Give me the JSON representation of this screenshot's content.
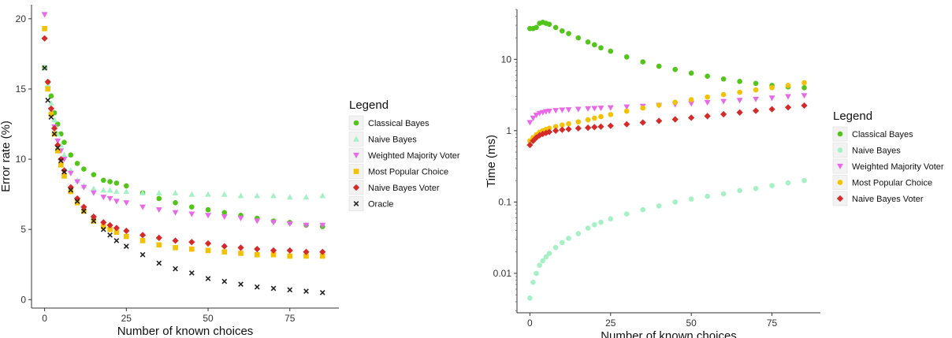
{
  "legend_title": "Legend",
  "colors": {
    "Classical Bayes": "#52c41a",
    "Naive Bayes": "#a6f0c6",
    "Weighted Majority Voter": "#e868e8",
    "Most Popular Choice": "#f2c200",
    "Naive Bayes Voter": "#d42a2a",
    "Oracle": "#222222"
  },
  "chart_data": [
    {
      "type": "scatter",
      "xlabel": "Number of known choices",
      "ylabel": "Error rate (%)",
      "xlim": [
        -4,
        90
      ],
      "ylim": [
        -0.6,
        21
      ],
      "xticks": [
        0,
        25,
        50,
        75
      ],
      "yticks": [
        0,
        5,
        10,
        15,
        20
      ],
      "y_scale": "linear",
      "grid": false,
      "legend": "right",
      "legend_title": "Legend",
      "series": [
        {
          "name": "Classical Bayes",
          "marker": "circle",
          "x": [
            0,
            1,
            2,
            3,
            4,
            5,
            6,
            8,
            10,
            12,
            15,
            18,
            20,
            22,
            25,
            30,
            35,
            40,
            45,
            50,
            55,
            60,
            65,
            70,
            75,
            80,
            85
          ],
          "y": [
            16.5,
            15.5,
            14.5,
            13.3,
            12.5,
            11.8,
            11.2,
            10.3,
            9.7,
            9.3,
            8.9,
            8.5,
            8.4,
            8.3,
            8.1,
            7.6,
            7.2,
            6.9,
            6.6,
            6.4,
            6.2,
            6.0,
            5.8,
            5.6,
            5.5,
            5.3,
            5.2
          ]
        },
        {
          "name": "Naive Bayes",
          "marker": "triangle-up",
          "x": [
            0,
            1,
            2,
            3,
            4,
            5,
            6,
            8,
            10,
            12,
            15,
            18,
            20,
            22,
            25,
            30,
            35,
            40,
            45,
            50,
            55,
            60,
            65,
            70,
            75,
            80,
            85
          ],
          "y": [
            16.5,
            15.3,
            14.0,
            12.8,
            11.8,
            11.0,
            10.3,
            9.2,
            8.5,
            8.1,
            7.9,
            7.8,
            7.8,
            7.7,
            7.7,
            7.6,
            7.6,
            7.6,
            7.5,
            7.5,
            7.5,
            7.4,
            7.4,
            7.4,
            7.3,
            7.3,
            7.4
          ]
        },
        {
          "name": "Weighted Majority Voter",
          "marker": "triangle-down",
          "x": [
            0,
            1,
            2,
            3,
            4,
            5,
            6,
            8,
            10,
            12,
            15,
            18,
            20,
            22,
            25,
            30,
            35,
            40,
            45,
            50,
            55,
            60,
            65,
            70,
            75,
            80,
            85
          ],
          "y": [
            20.3,
            15.0,
            13.5,
            12.3,
            11.3,
            10.6,
            10.0,
            9.0,
            8.4,
            8.0,
            7.6,
            7.3,
            7.2,
            7.0,
            6.9,
            6.6,
            6.4,
            6.2,
            6.1,
            6.0,
            5.9,
            5.8,
            5.6,
            5.5,
            5.4,
            5.3,
            5.3
          ]
        },
        {
          "name": "Most Popular Choice",
          "marker": "square",
          "x": [
            0,
            1,
            2,
            3,
            4,
            5,
            6,
            8,
            10,
            12,
            15,
            18,
            20,
            22,
            25,
            30,
            35,
            40,
            45,
            50,
            55,
            60,
            65,
            70,
            75,
            80,
            85
          ],
          "y": [
            19.3,
            15.0,
            13.2,
            11.8,
            10.6,
            9.6,
            8.8,
            7.7,
            6.9,
            6.3,
            5.6,
            5.2,
            5.0,
            4.8,
            4.5,
            4.2,
            3.9,
            3.7,
            3.6,
            3.5,
            3.4,
            3.3,
            3.2,
            3.2,
            3.1,
            3.1,
            3.1
          ]
        },
        {
          "name": "Naive Bayes Voter",
          "marker": "diamond",
          "x": [
            0,
            1,
            2,
            3,
            4,
            5,
            6,
            8,
            10,
            12,
            15,
            18,
            20,
            22,
            25,
            30,
            35,
            40,
            45,
            50,
            55,
            60,
            65,
            70,
            75,
            80,
            85
          ],
          "y": [
            18.6,
            15.5,
            13.6,
            12.2,
            11.0,
            10.0,
            9.2,
            8.0,
            7.2,
            6.6,
            5.9,
            5.5,
            5.3,
            5.1,
            4.9,
            4.6,
            4.4,
            4.2,
            4.1,
            4.0,
            3.8,
            3.7,
            3.6,
            3.5,
            3.5,
            3.4,
            3.4
          ]
        },
        {
          "name": "Oracle",
          "marker": "cross",
          "x": [
            0,
            1,
            2,
            3,
            4,
            5,
            6,
            8,
            10,
            12,
            15,
            18,
            20,
            22,
            25,
            30,
            35,
            40,
            45,
            50,
            55,
            60,
            65,
            70,
            75,
            80,
            85
          ],
          "y": [
            16.5,
            14.2,
            13.0,
            11.8,
            10.8,
            9.9,
            9.1,
            7.8,
            7.0,
            6.3,
            5.6,
            5.0,
            4.6,
            4.2,
            3.8,
            3.2,
            2.6,
            2.2,
            1.9,
            1.5,
            1.3,
            1.1,
            0.9,
            0.8,
            0.7,
            0.6,
            0.5
          ]
        }
      ]
    },
    {
      "type": "scatter",
      "xlabel": "Number of known choices",
      "ylabel": "Time (ms)",
      "xlim": [
        -4,
        90
      ],
      "ylim": [
        0.0028,
        50
      ],
      "xticks": [
        0,
        25,
        50,
        75
      ],
      "yticks": [
        0.01,
        0.1,
        1,
        10
      ],
      "ytick_labels": [
        "0.01",
        "0.1",
        "1",
        "10"
      ],
      "y_scale": "log",
      "grid": false,
      "legend": "right",
      "legend_title": "Legend",
      "series": [
        {
          "name": "Classical Bayes",
          "marker": "circle",
          "x": [
            0,
            1,
            2,
            3,
            4,
            5,
            6,
            8,
            10,
            12,
            15,
            18,
            20,
            22,
            25,
            30,
            35,
            40,
            45,
            50,
            55,
            60,
            65,
            70,
            75,
            80,
            85
          ],
          "y": [
            27,
            27,
            28,
            32,
            33,
            32,
            31,
            28,
            25,
            23,
            20,
            17.5,
            16,
            14.5,
            13,
            10.8,
            9.2,
            8.0,
            7.2,
            6.4,
            5.8,
            5.3,
            4.9,
            4.6,
            4.3,
            4.1,
            4.0
          ]
        },
        {
          "name": "Naive Bayes",
          "marker": "circle",
          "x": [
            0,
            1,
            2,
            3,
            4,
            5,
            6,
            8,
            10,
            12,
            15,
            18,
            20,
            22,
            25,
            30,
            35,
            40,
            45,
            50,
            55,
            60,
            65,
            70,
            75,
            80,
            85
          ],
          "y": [
            0.0045,
            0.0075,
            0.01,
            0.013,
            0.015,
            0.017,
            0.019,
            0.023,
            0.027,
            0.031,
            0.036,
            0.043,
            0.048,
            0.052,
            0.058,
            0.068,
            0.078,
            0.088,
            0.1,
            0.11,
            0.12,
            0.13,
            0.145,
            0.155,
            0.17,
            0.185,
            0.2
          ]
        },
        {
          "name": "Weighted Majority Voter",
          "marker": "triangle-down",
          "x": [
            0,
            1,
            2,
            3,
            4,
            5,
            6,
            8,
            10,
            12,
            15,
            18,
            20,
            22,
            25,
            30,
            35,
            40,
            45,
            50,
            55,
            60,
            65,
            70,
            75,
            80,
            85
          ],
          "y": [
            1.3,
            1.5,
            1.65,
            1.75,
            1.8,
            1.85,
            1.88,
            1.92,
            1.95,
            1.97,
            2.0,
            2.03,
            2.05,
            2.07,
            2.1,
            2.15,
            2.2,
            2.26,
            2.33,
            2.4,
            2.48,
            2.57,
            2.66,
            2.76,
            2.87,
            3.0,
            3.1
          ]
        },
        {
          "name": "Most Popular Choice",
          "marker": "circle",
          "x": [
            0,
            1,
            2,
            3,
            4,
            5,
            6,
            8,
            10,
            12,
            15,
            18,
            20,
            22,
            25,
            30,
            35,
            40,
            45,
            50,
            55,
            60,
            65,
            70,
            75,
            80,
            85
          ],
          "y": [
            0.72,
            0.8,
            0.88,
            0.95,
            1.0,
            1.04,
            1.08,
            1.14,
            1.2,
            1.25,
            1.33,
            1.42,
            1.5,
            1.57,
            1.68,
            1.88,
            2.08,
            2.28,
            2.5,
            2.72,
            2.96,
            3.2,
            3.46,
            3.73,
            4.0,
            4.3,
            4.7
          ]
        },
        {
          "name": "Naive Bayes Voter",
          "marker": "diamond",
          "x": [
            0,
            1,
            2,
            3,
            4,
            5,
            6,
            8,
            10,
            12,
            15,
            18,
            20,
            22,
            25,
            30,
            35,
            40,
            45,
            50,
            55,
            60,
            65,
            70,
            75,
            80,
            85
          ],
          "y": [
            0.63,
            0.72,
            0.8,
            0.86,
            0.9,
            0.93,
            0.96,
            1.0,
            1.03,
            1.05,
            1.08,
            1.1,
            1.12,
            1.14,
            1.17,
            1.23,
            1.3,
            1.37,
            1.44,
            1.52,
            1.6,
            1.7,
            1.8,
            1.9,
            2.0,
            2.12,
            2.25
          ]
        }
      ]
    }
  ]
}
